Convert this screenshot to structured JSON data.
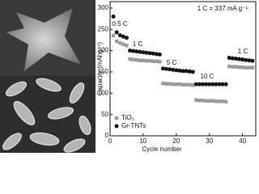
{
  "chart_data": {
    "type": "scatter",
    "xlabel": "Cycle number",
    "ylabel": "Capacity (mAhg⁻¹)",
    "xlim": [
      0,
      44
    ],
    "xticks": [
      0,
      10,
      20,
      30,
      40
    ],
    "ylim": [
      0,
      315
    ],
    "yticks": [
      0,
      50,
      100,
      150,
      200,
      250,
      300
    ],
    "legend": "lower left",
    "annotations": [
      "0.5 C",
      "1 C",
      "5 C",
      "10 C",
      "1 C",
      "1 C = 337 mA g⁻¹"
    ],
    "series": [
      {
        "name": "TiO₂",
        "color": "#9a9a9a",
        "marker": "square",
        "x": [
          1,
          2,
          3,
          4,
          5,
          6,
          7,
          8,
          9,
          10,
          11,
          12,
          13,
          14,
          15,
          16,
          17,
          18,
          19,
          20,
          21,
          22,
          23,
          24,
          25,
          26,
          27,
          28,
          29,
          30,
          31,
          32,
          33,
          34,
          35,
          36,
          37,
          38,
          39,
          40,
          41,
          42,
          43
        ],
        "values": [
          235,
          222,
          218,
          215,
          212,
          180,
          179,
          178,
          177,
          177,
          176,
          176,
          175,
          175,
          174,
          123,
          122,
          122,
          121,
          121,
          121,
          120,
          120,
          120,
          119,
          84,
          83,
          83,
          82,
          82,
          82,
          81,
          81,
          81,
          80,
          163,
          162,
          162,
          161,
          161,
          160,
          160,
          160
        ]
      },
      {
        "name": "Gr-TNTs",
        "color": "#111111",
        "marker": "circle",
        "x": [
          1,
          2,
          3,
          4,
          5,
          6,
          7,
          8,
          9,
          10,
          11,
          12,
          13,
          14,
          15,
          16,
          17,
          18,
          19,
          20,
          21,
          22,
          23,
          24,
          25,
          26,
          27,
          28,
          29,
          30,
          31,
          32,
          33,
          34,
          35,
          36,
          37,
          38,
          39,
          40,
          41,
          42,
          43
        ],
        "values": [
          280,
          243,
          236,
          233,
          230,
          200,
          199,
          198,
          197,
          196,
          195,
          194,
          193,
          192,
          191,
          158,
          157,
          156,
          155,
          154,
          153,
          152,
          152,
          151,
          150,
          121,
          121,
          121,
          121,
          121,
          121,
          121,
          121,
          121,
          121,
          183,
          182,
          181,
          180,
          179,
          178,
          177,
          176
        ]
      }
    ]
  }
}
